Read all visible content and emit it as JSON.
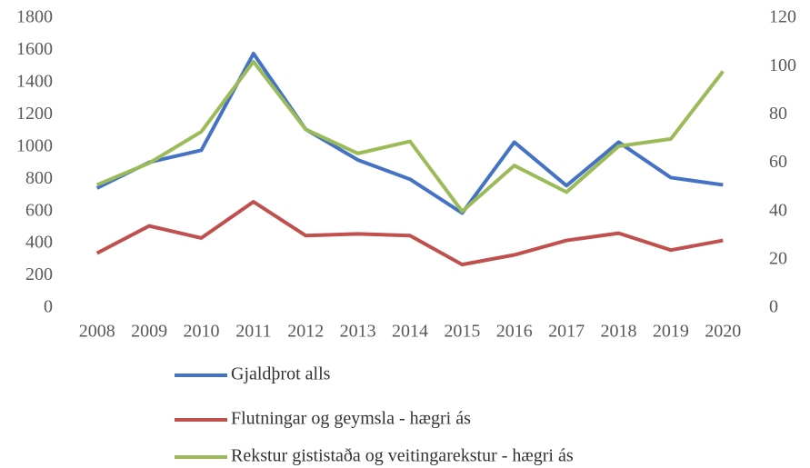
{
  "chart_data": {
    "type": "line",
    "categories": [
      "2008",
      "2009",
      "2010",
      "2011",
      "2012",
      "2013",
      "2014",
      "2015",
      "2016",
      "2017",
      "2018",
      "2019",
      "2020"
    ],
    "series": [
      {
        "name": "Gjaldþrot alls",
        "color": "#4472c4",
        "values": [
          745,
          905,
          980,
          1580,
          1110,
          920,
          800,
          590,
          1030,
          760,
          1030,
          810,
          765
        ]
      },
      {
        "name": "Flutningar og geymsla - hægri ás",
        "color": "#c0504d",
        "axis": "y2",
        "values": [
          22.7,
          34,
          29,
          44,
          30,
          30.7,
          30,
          18,
          22,
          28,
          31,
          24,
          28
        ]
      },
      {
        "name": "Rekstur gististaða og veitingarekstur - hægri ás",
        "color": "#9bbb59",
        "axis": "y2",
        "values": [
          51,
          60,
          73,
          102,
          74,
          64,
          69,
          40,
          59,
          48,
          67,
          70,
          98
        ]
      }
    ],
    "ylim": [
      0,
      1800
    ],
    "yticks": [
      0,
      200,
      400,
      600,
      800,
      1000,
      1200,
      1400,
      1600,
      1800
    ],
    "y2lim": [
      0,
      120
    ],
    "y2ticks": [
      0,
      20,
      40,
      60,
      80,
      100,
      120
    ],
    "grid": false,
    "legend": "bottom"
  }
}
